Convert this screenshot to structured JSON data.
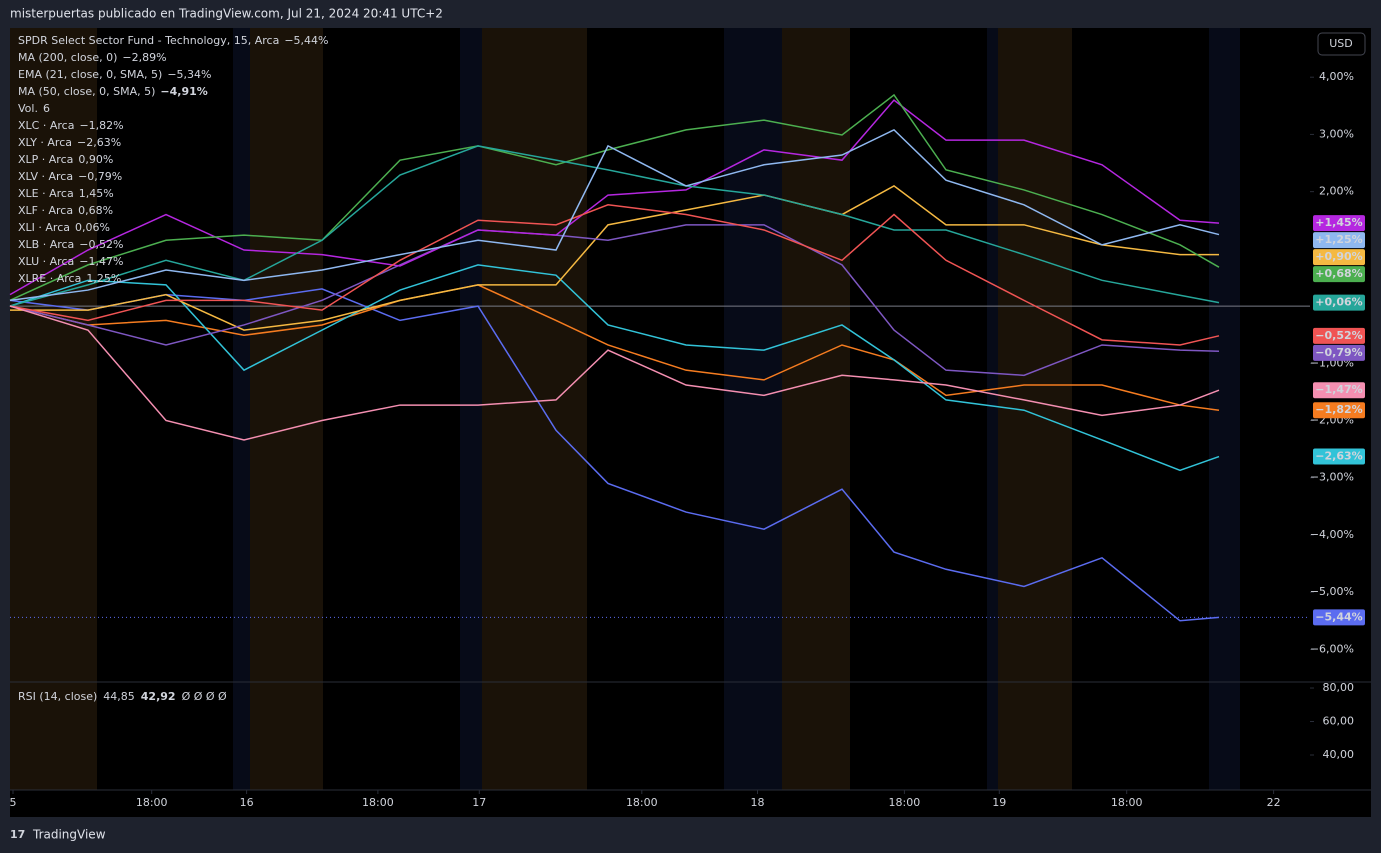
{
  "header": {
    "text": "misterpuertas publicado en TradingView.com, Jul 21, 2024 20:41 UTC+2"
  },
  "currency_button": "USD",
  "footer": {
    "logo_text": "TradingView"
  },
  "chart_data": {
    "type": "line",
    "x": [
      0,
      6,
      12,
      18,
      24,
      30,
      36,
      42,
      46,
      52,
      58,
      64,
      68,
      72,
      78,
      84,
      90,
      93
    ],
    "xlim": [
      0,
      100
    ],
    "xticks": [
      {
        "value": 0.23,
        "label": "5"
      },
      {
        "value": 10.9,
        "label": "18:00"
      },
      {
        "value": 18.2,
        "label": "16"
      },
      {
        "value": 28.3,
        "label": "18:00"
      },
      {
        "value": 36.1,
        "label": "17"
      },
      {
        "value": 48.6,
        "label": "18:00"
      },
      {
        "value": 57.5,
        "label": "18"
      },
      {
        "value": 68.8,
        "label": "18:00"
      },
      {
        "value": 76.1,
        "label": "19"
      },
      {
        "value": 85.9,
        "label": "18:00"
      },
      {
        "value": 97.2,
        "label": "22"
      }
    ],
    "ylim": [
      -6.57,
      4.86
    ],
    "yticks": [
      {
        "value": 4,
        "label": "4,00%"
      },
      {
        "value": 3,
        "label": "3,00%"
      },
      {
        "value": 2,
        "label": "2,00%"
      },
      {
        "value": -1,
        "label": "−1,00%"
      },
      {
        "value": -2,
        "label": "−2,00%"
      },
      {
        "value": -3,
        "label": "−3,00%"
      },
      {
        "value": -4,
        "label": "−4,00%"
      },
      {
        "value": -5,
        "label": "−5,00%"
      },
      {
        "value": -6,
        "label": "−6,00%"
      }
    ],
    "indicators": [
      {
        "name": "MA (200, close, 0)",
        "legend_value": "−2,89%",
        "color": "#c040e0"
      },
      {
        "name": "EMA (21, close, 0, SMA, 5)",
        "legend_value": "−5,34%",
        "color": "#5b7cf5"
      },
      {
        "name": "MA (50, close, 0, SMA, 5)",
        "legend_value": "−4,91%",
        "color": "#f5d442"
      }
    ],
    "volume": {
      "name": "Vol.",
      "value": "6",
      "color": "#26a69a"
    },
    "series": [
      {
        "name": "SPDR Select Sector Fund - Technology, 15, Arca",
        "legend_value": "−5,44%",
        "color": "#5b6cf0",
        "values": [
          0.1,
          -0.07,
          0.2,
          0.1,
          0.3,
          -0.25,
          0,
          -2.17,
          -3.1,
          -3.6,
          -3.9,
          -3.2,
          -4.3,
          -4.6,
          -4.9,
          -4.4,
          -5.5,
          -5.44
        ],
        "value_labels": [
          null,
          null,
          null,
          null,
          null,
          null,
          null,
          null,
          null,
          null,
          null,
          null,
          null,
          null,
          null,
          null,
          null,
          "−5,44%"
        ]
      },
      {
        "name": "XLC · Arca",
        "legend_value": "−1,82%",
        "color": "#f57c20",
        "values": [
          0,
          -0.33,
          -0.25,
          -0.51,
          -0.33,
          0.1,
          0.37,
          -0.25,
          -0.68,
          -1.12,
          -1.29,
          -0.68,
          -0.94,
          -1.56,
          -1.38,
          -1.38,
          -1.73,
          -1.82
        ],
        "value_labels": [
          null,
          null,
          null,
          null,
          null,
          null,
          null,
          null,
          null,
          null,
          null,
          null,
          null,
          null,
          null,
          null,
          null,
          "−1,82%"
        ]
      },
      {
        "name": "XLY · Arca",
        "legend_value": "−2,63%",
        "color": "#32c3d8",
        "values": [
          0,
          0.45,
          0.37,
          -1.12,
          -0.42,
          0.28,
          0.72,
          0.54,
          -0.33,
          -0.68,
          -0.77,
          -0.33,
          -0.94,
          -1.64,
          -1.82,
          -2.34,
          -2.87,
          -2.63
        ],
        "value_labels": [
          null,
          null,
          null,
          null,
          null,
          null,
          null,
          null,
          null,
          null,
          null,
          null,
          null,
          null,
          null,
          null,
          null,
          "−2,63%"
        ]
      },
      {
        "name": "XLP · Arca",
        "legend_value": "0,90%",
        "color": "#f5b942",
        "values": [
          -0.07,
          -0.07,
          0.2,
          -0.42,
          -0.25,
          0.1,
          0.37,
          0.37,
          1.42,
          1.68,
          1.94,
          1.6,
          2.1,
          1.42,
          1.42,
          1.07,
          0.9,
          0.9
        ],
        "value_labels": [
          null,
          null,
          null,
          null,
          null,
          null,
          null,
          null,
          null,
          null,
          null,
          null,
          null,
          null,
          null,
          null,
          null,
          "+0,90%"
        ]
      },
      {
        "name": "XLV · Arca",
        "legend_value": "−0,79%",
        "color": "#7e57c2",
        "values": [
          0,
          -0.33,
          -0.68,
          -0.33,
          0.1,
          0.72,
          1.33,
          1.24,
          1.15,
          1.42,
          1.42,
          0.72,
          -0.42,
          -1.12,
          -1.21,
          -0.68,
          -0.77,
          -0.79
        ],
        "value_labels": [
          null,
          null,
          null,
          null,
          null,
          null,
          null,
          null,
          null,
          null,
          null,
          null,
          null,
          null,
          null,
          null,
          null,
          "−0,79%"
        ]
      },
      {
        "name": "XLE · Arca",
        "legend_value": "1,45%",
        "color": "#b527e0",
        "values": [
          0.2,
          0.98,
          1.6,
          0.98,
          0.9,
          0.7,
          1.33,
          1.24,
          1.94,
          2.03,
          2.73,
          2.55,
          3.6,
          2.9,
          2.9,
          2.47,
          1.5,
          1.45
        ],
        "value_labels": [
          null,
          null,
          null,
          null,
          null,
          null,
          null,
          null,
          null,
          null,
          null,
          null,
          null,
          null,
          null,
          null,
          null,
          "+1,45%"
        ]
      },
      {
        "name": "XLF · Arca",
        "legend_value": "0,68%",
        "color": "#4caf50",
        "values": [
          0.1,
          0.72,
          1.15,
          1.24,
          1.15,
          2.55,
          2.8,
          2.47,
          2.73,
          3.08,
          3.25,
          2.99,
          3.69,
          2.38,
          2.03,
          1.6,
          1.07,
          0.68
        ],
        "value_labels": [
          null,
          null,
          null,
          null,
          null,
          null,
          null,
          null,
          null,
          null,
          null,
          null,
          null,
          null,
          null,
          null,
          null,
          "+0,68%"
        ]
      },
      {
        "name": "XLI · Arca",
        "legend_value": "0,06%",
        "color": "#26a69a",
        "values": [
          0,
          0.37,
          0.8,
          0.45,
          1.15,
          2.29,
          2.8,
          2.55,
          2.38,
          2.1,
          1.94,
          1.6,
          1.33,
          1.33,
          0.9,
          0.45,
          0.19,
          0.06
        ],
        "value_labels": [
          null,
          null,
          null,
          null,
          null,
          null,
          null,
          null,
          null,
          null,
          null,
          null,
          null,
          null,
          null,
          null,
          null,
          "+0,06%"
        ]
      },
      {
        "name": "XLB · Arca",
        "legend_value": "−0,52%",
        "color": "#f05454",
        "values": [
          0,
          -0.25,
          0.1,
          0.1,
          -0.07,
          0.8,
          1.5,
          1.42,
          1.77,
          1.6,
          1.33,
          0.8,
          1.6,
          0.8,
          0.1,
          -0.59,
          -0.68,
          -0.52
        ],
        "value_labels": [
          null,
          null,
          null,
          null,
          null,
          null,
          null,
          null,
          null,
          null,
          null,
          null,
          null,
          null,
          null,
          null,
          null,
          "−0,52%"
        ]
      },
      {
        "name": "XLU · Arca",
        "legend_value": "−1,47%",
        "color": "#f48fb1",
        "values": [
          0,
          -0.42,
          -2.0,
          -2.34,
          -2.0,
          -1.73,
          -1.73,
          -1.64,
          -0.77,
          -1.38,
          -1.56,
          -1.21,
          -1.29,
          -1.38,
          -1.64,
          -1.91,
          -1.73,
          -1.47
        ],
        "value_labels": [
          null,
          null,
          null,
          null,
          null,
          null,
          null,
          null,
          null,
          null,
          null,
          null,
          null,
          null,
          null,
          null,
          null,
          "−1,47%"
        ]
      },
      {
        "name": "XLRE · Arca",
        "legend_value": "1,25%",
        "color": "#8fb8f0",
        "values": [
          0.1,
          0.28,
          0.63,
          0.45,
          0.63,
          0.9,
          1.15,
          0.98,
          2.8,
          2.1,
          2.47,
          2.64,
          3.08,
          2.2,
          1.77,
          1.07,
          1.42,
          1.25
        ],
        "value_labels": [
          null,
          null,
          null,
          null,
          null,
          null,
          null,
          null,
          null,
          null,
          null,
          null,
          null,
          null,
          null,
          null,
          null,
          "+1,25%"
        ]
      }
    ]
  },
  "rsi": {
    "title": "RSI (14, close)",
    "legend_values": [
      "44,85",
      "42,92"
    ],
    "placeholders": "Ø Ø Ø Ø",
    "ylim": [
      19.1,
      83.6
    ],
    "yticks": [
      {
        "value": 80,
        "label": "80,00"
      },
      {
        "value": 60,
        "label": "60,00"
      },
      {
        "value": 40,
        "label": "40,00"
      }
    ]
  }
}
